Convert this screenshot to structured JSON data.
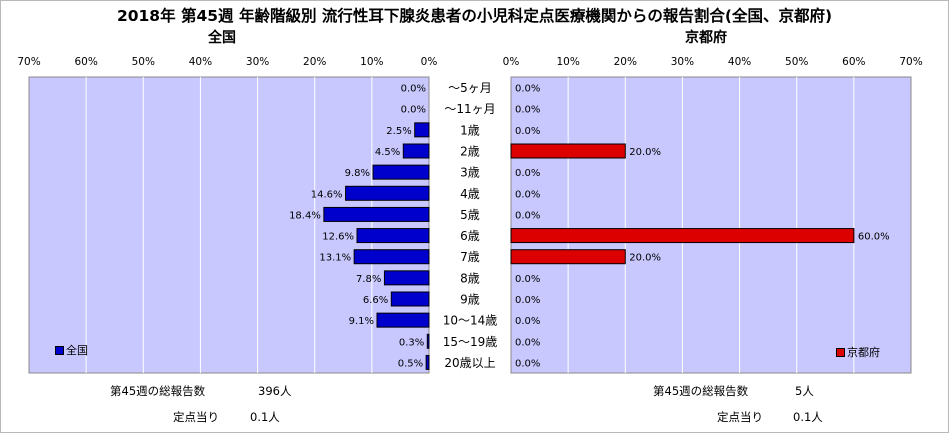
{
  "title": "2018年 第45週 年齢階級別 流行性耳下腺炎患者の小児科定点医療機関からの報告割合(全国、京都府)",
  "colors": {
    "plot_bg": "#c8c8ff",
    "national": "#0000cc",
    "kyoto": "#dd0000",
    "grid": "#ffffff"
  },
  "chart_data": [
    {
      "type": "bar",
      "orientation": "horizontal",
      "direction": "right-to-left",
      "title": "全国",
      "categories": [
        "～5ヶ月",
        "～11ヶ月",
        "1歳",
        "2歳",
        "3歳",
        "4歳",
        "5歳",
        "6歳",
        "7歳",
        "8歳",
        "9歳",
        "10～14歳",
        "15～19歳",
        "20歳以上"
      ],
      "values": [
        0.0,
        0.0,
        2.5,
        4.5,
        9.8,
        14.6,
        18.4,
        12.6,
        13.1,
        7.8,
        6.6,
        9.1,
        0.3,
        0.5
      ],
      "value_labels": [
        "0.0%",
        "0.0%",
        "2.5%",
        "4.5%",
        "9.8%",
        "14.6%",
        "18.4%",
        "12.6%",
        "13.1%",
        "7.8%",
        "6.6%",
        "9.1%",
        "0.3%",
        "0.5%"
      ],
      "xlim": [
        0,
        70
      ],
      "ticks": [
        "70%",
        "60%",
        "50%",
        "40%",
        "30%",
        "20%",
        "10%",
        "0%"
      ],
      "series": [
        {
          "name": "全国"
        }
      ],
      "legend": "bottom-left",
      "grid": true
    },
    {
      "type": "bar",
      "orientation": "horizontal",
      "direction": "left-to-right",
      "title": "京都府",
      "categories": [
        "～5ヶ月",
        "～11ヶ月",
        "1歳",
        "2歳",
        "3歳",
        "4歳",
        "5歳",
        "6歳",
        "7歳",
        "8歳",
        "9歳",
        "10～14歳",
        "15～19歳",
        "20歳以上"
      ],
      "values": [
        0.0,
        0.0,
        0.0,
        20.0,
        0.0,
        0.0,
        0.0,
        60.0,
        20.0,
        0.0,
        0.0,
        0.0,
        0.0,
        0.0
      ],
      "value_labels": [
        "0.0%",
        "0.0%",
        "0.0%",
        "20.0%",
        "0.0%",
        "0.0%",
        "0.0%",
        "60.0%",
        "20.0%",
        "0.0%",
        "0.0%",
        "0.0%",
        "0.0%",
        "0.0%"
      ],
      "xlim": [
        0,
        70
      ],
      "ticks": [
        "0%",
        "10%",
        "20%",
        "30%",
        "40%",
        "50%",
        "60%",
        "70%"
      ],
      "series": [
        {
          "name": "京都府"
        }
      ],
      "legend": "bottom-right",
      "grid": true
    }
  ],
  "footer": {
    "national": {
      "total_label": "第45週の総報告数",
      "total_value": "396人",
      "per_label": "定点当り",
      "per_value": "0.1人"
    },
    "kyoto": {
      "total_label": "第45週の総報告数",
      "total_value": "5人",
      "per_label": "定点当り",
      "per_value": "0.1人"
    }
  }
}
